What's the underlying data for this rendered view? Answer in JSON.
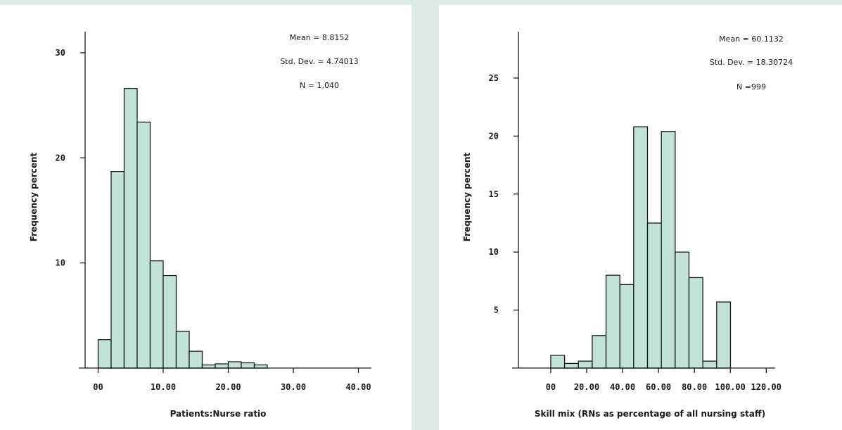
{
  "chart_data": [
    {
      "type": "bar",
      "xlabel": "Patients:Nurse ratio",
      "ylabel": "Frequency percent",
      "stats": {
        "mean": "Mean = 8.8152",
        "sd": "Std. Dev. = 4.74013",
        "n": "N = 1,040"
      },
      "x_ticks": [
        {
          "value": 0,
          "label": "00"
        },
        {
          "value": 10,
          "label": "10.00"
        },
        {
          "value": 20,
          "label": "20.00"
        },
        {
          "value": 30,
          "label": "30.00"
        },
        {
          "value": 40,
          "label": "40.00"
        }
      ],
      "y_ticks": [
        {
          "value": 10,
          "label": "10"
        },
        {
          "value": 20,
          "label": "20"
        },
        {
          "value": 30,
          "label": "30"
        }
      ],
      "xlim": [
        -2,
        42
      ],
      "ylim": [
        0,
        32
      ],
      "bins": [
        {
          "x0": 0,
          "x1": 2,
          "value": 2.7
        },
        {
          "x0": 2,
          "x1": 4,
          "value": 18.7
        },
        {
          "x0": 4,
          "x1": 6,
          "value": 26.6
        },
        {
          "x0": 6,
          "x1": 8,
          "value": 23.4
        },
        {
          "x0": 8,
          "x1": 10,
          "value": 10.2
        },
        {
          "x0": 10,
          "x1": 12,
          "value": 8.8
        },
        {
          "x0": 12,
          "x1": 14,
          "value": 3.5
        },
        {
          "x0": 14,
          "x1": 16,
          "value": 1.6
        },
        {
          "x0": 16,
          "x1": 18,
          "value": 0.3
        },
        {
          "x0": 18,
          "x1": 20,
          "value": 0.4
        },
        {
          "x0": 20,
          "x1": 22,
          "value": 0.6
        },
        {
          "x0": 22,
          "x1": 24,
          "value": 0.5
        },
        {
          "x0": 24,
          "x1": 26,
          "value": 0.3
        }
      ]
    },
    {
      "type": "bar",
      "xlabel": "Skill mix (RNs as percentage of all nursing staff)",
      "ylabel": "Frequency percent",
      "stats": {
        "mean": "Mean = 60.1132",
        "sd": "Std. Dev. = 18.30724",
        "n": "N =999"
      },
      "x_ticks": [
        {
          "value": 0,
          "label": "00"
        },
        {
          "value": 20,
          "label": "20.00"
        },
        {
          "value": 40,
          "label": "40.00"
        },
        {
          "value": 60,
          "label": "60.00"
        },
        {
          "value": 80,
          "label": "80.00"
        },
        {
          "value": 100,
          "label": "100.00"
        },
        {
          "value": 120,
          "label": "120.00"
        }
      ],
      "y_ticks": [
        {
          "value": 5,
          "label": "5"
        },
        {
          "value": 10,
          "label": "10"
        },
        {
          "value": 15,
          "label": "15"
        },
        {
          "value": 20,
          "label": "20"
        },
        {
          "value": 25,
          "label": "25"
        }
      ],
      "xlim": [
        -18,
        125
      ],
      "ylim": [
        0,
        29
      ],
      "bins": [
        {
          "x0": 0,
          "x1": 7.7,
          "value": 1.1
        },
        {
          "x0": 7.7,
          "x1": 15.4,
          "value": 0.4
        },
        {
          "x0": 15.4,
          "x1": 23.1,
          "value": 0.6
        },
        {
          "x0": 23.1,
          "x1": 30.8,
          "value": 2.8
        },
        {
          "x0": 30.8,
          "x1": 38.5,
          "value": 8.0
        },
        {
          "x0": 38.5,
          "x1": 46.2,
          "value": 7.2
        },
        {
          "x0": 46.2,
          "x1": 53.9,
          "value": 20.8
        },
        {
          "x0": 53.9,
          "x1": 61.6,
          "value": 12.5
        },
        {
          "x0": 61.6,
          "x1": 69.3,
          "value": 20.4
        },
        {
          "x0": 69.3,
          "x1": 77.0,
          "value": 10.0
        },
        {
          "x0": 77.0,
          "x1": 84.7,
          "value": 7.8
        },
        {
          "x0": 84.7,
          "x1": 92.4,
          "value": 0.6
        },
        {
          "x0": 92.4,
          "x1": 100.1,
          "value": 5.7
        }
      ]
    }
  ]
}
